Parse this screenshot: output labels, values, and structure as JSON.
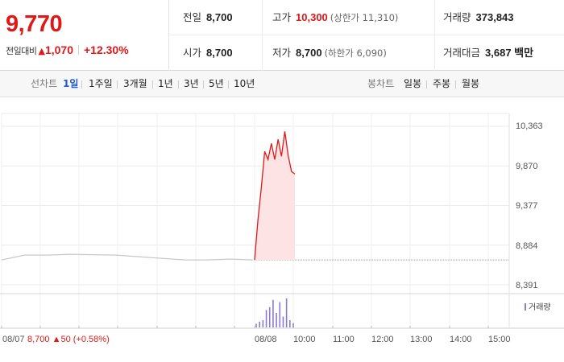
{
  "quote": {
    "price": "9,770",
    "change_label": "전일대비",
    "change_arrow": "▲",
    "change_value": "1,070",
    "change_rate": "+12.30%",
    "stats": {
      "prev_close": {
        "label": "전일",
        "value": "8,700"
      },
      "high": {
        "label": "고가",
        "value": "10,300",
        "sub": "(상한가 11,310)"
      },
      "volume": {
        "label": "거래량",
        "value": "373,843"
      },
      "open": {
        "label": "시가",
        "value": "8,700"
      },
      "low": {
        "label": "저가",
        "value": "8,700",
        "sub": "(하한가 6,090)"
      },
      "amount": {
        "label": "거래대금",
        "value": "3,687 백만"
      }
    }
  },
  "tabs": {
    "line_label": "선차트",
    "periods": [
      "1일",
      "1주일",
      "3개월",
      "1년",
      "3년",
      "5년",
      "10년"
    ],
    "active_period": "1일",
    "candle_label": "봉차트",
    "candles": [
      "일봉",
      "주봉",
      "월봉"
    ]
  },
  "chart": {
    "y_ticks": [
      "10,363",
      "9,870",
      "9,377",
      "8,884",
      "8,391"
    ],
    "x_ticks_prev": "08/07",
    "x_ticks_today": [
      "08/08",
      "10:00",
      "11:00",
      "12:00",
      "13:00",
      "14:00",
      "15:00"
    ],
    "volume_legend": "거래량",
    "prev_day_summary": {
      "price": "8,700",
      "arrow": "▲",
      "change": "50",
      "rate": "(+0.58%)"
    },
    "colors": {
      "up": "#e01818",
      "fill": "#fde3e3",
      "prev_line": "#c8c8c8",
      "volume": "#8c7bd0"
    }
  },
  "chart_data": {
    "type": "line",
    "ylim": [
      8391,
      10363
    ],
    "prev_close": 8700,
    "series": [
      {
        "x": [
          "08/07 a",
          "08/07 b",
          "08/07 c",
          "08/07 d",
          "08/07 e",
          "08/07 f",
          "08/07 g",
          "08/07 h",
          "08/07 i",
          "08/07 j",
          "08/07 k",
          "08/07 l"
        ],
        "values": [
          8700,
          8760,
          8760,
          8770,
          8765,
          8760,
          8740,
          8720,
          8700,
          8700,
          8710,
          8700
        ]
      },
      {
        "x": [
          "09:00",
          "09:05",
          "09:10",
          "09:15",
          "09:20",
          "09:25",
          "09:30",
          "09:35",
          "09:40",
          "09:45",
          "09:50",
          "09:55",
          "10:00"
        ],
        "values": [
          8700,
          9200,
          9600,
          10050,
          9950,
          10150,
          9950,
          10200,
          9990,
          10300,
          10000,
          9800,
          9770
        ]
      }
    ],
    "volume": [
      5,
      8,
      10,
      24,
      28,
      38,
      20,
      35,
      15,
      40,
      10,
      6
    ]
  }
}
